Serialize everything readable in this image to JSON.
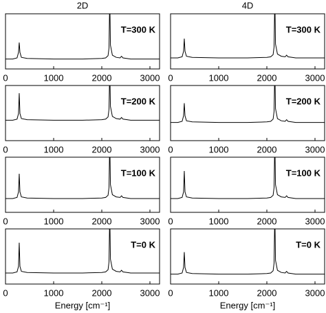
{
  "chart_data": [
    {
      "type": "line",
      "title": "2D",
      "annotation": "T=300 K",
      "color": "#000000",
      "x": [
        0,
        150,
        240,
        270,
        285,
        300,
        330,
        450,
        1000,
        1600,
        2000,
        2080,
        2130,
        2150,
        2165,
        2180,
        2220,
        2300,
        2380,
        2410,
        2440,
        2600,
        3000,
        3200
      ],
      "values": [
        0.18,
        0.18,
        0.2,
        0.3,
        0.48,
        0.3,
        0.21,
        0.19,
        0.18,
        0.18,
        0.19,
        0.2,
        0.24,
        0.38,
        1.3,
        0.43,
        0.25,
        0.21,
        0.2,
        0.23,
        0.2,
        0.18,
        0.18,
        0.18
      ],
      "xlim": [
        0,
        3200
      ],
      "ylim": [
        0,
        1
      ],
      "xticks": [
        0,
        1000,
        2000,
        3000
      ]
    },
    {
      "type": "line",
      "annotation": "T=200 K",
      "color": "#000000",
      "x": [
        0,
        150,
        240,
        270,
        285,
        300,
        330,
        450,
        1000,
        1600,
        2000,
        2080,
        2130,
        2150,
        2165,
        2180,
        2220,
        2300,
        2380,
        2410,
        2440,
        2600,
        3000,
        3200
      ],
      "values": [
        0.37,
        0.37,
        0.39,
        0.49,
        0.86,
        0.49,
        0.4,
        0.38,
        0.37,
        0.37,
        0.38,
        0.39,
        0.43,
        0.57,
        1.3,
        0.62,
        0.44,
        0.4,
        0.39,
        0.42,
        0.39,
        0.37,
        0.37,
        0.37
      ],
      "xlim": [
        0,
        3200
      ],
      "ylim": [
        0,
        1
      ],
      "xticks": [
        0,
        1000,
        2000,
        3000
      ]
    },
    {
      "type": "line",
      "annotation": "T=100 K",
      "color": "#000000",
      "x": [
        0,
        150,
        240,
        270,
        285,
        300,
        330,
        450,
        1000,
        1600,
        2000,
        2080,
        2130,
        2150,
        2165,
        2180,
        2220,
        2300,
        2380,
        2410,
        2440,
        2600,
        3000,
        3200
      ],
      "values": [
        0.25,
        0.25,
        0.27,
        0.37,
        0.7,
        0.37,
        0.28,
        0.26,
        0.25,
        0.25,
        0.26,
        0.27,
        0.31,
        0.45,
        1.3,
        0.5,
        0.32,
        0.28,
        0.27,
        0.3,
        0.27,
        0.25,
        0.25,
        0.25
      ],
      "xlim": [
        0,
        3200
      ],
      "ylim": [
        0,
        1
      ],
      "xticks": [
        0,
        1000,
        2000,
        3000
      ]
    },
    {
      "type": "line",
      "annotation": "T=0 K",
      "xlabel": "Energy [cm⁻¹]",
      "color": "#000000",
      "x": [
        0,
        150,
        240,
        270,
        285,
        300,
        330,
        450,
        1000,
        1600,
        2000,
        2080,
        2130,
        2150,
        2165,
        2180,
        2220,
        2300,
        2380,
        2410,
        2440,
        2600,
        3000,
        3200
      ],
      "values": [
        0.2,
        0.2,
        0.22,
        0.32,
        0.75,
        0.32,
        0.23,
        0.21,
        0.2,
        0.2,
        0.21,
        0.22,
        0.26,
        0.4,
        1.3,
        0.45,
        0.27,
        0.23,
        0.22,
        0.25,
        0.22,
        0.2,
        0.2,
        0.2
      ],
      "xlim": [
        0,
        3200
      ],
      "ylim": [
        0,
        1
      ],
      "xticks": [
        0,
        1000,
        2000,
        3000
      ]
    },
    {
      "type": "line",
      "title": "4D",
      "annotation": "T=300 K",
      "color": "#000000",
      "x": [
        0,
        150,
        240,
        270,
        285,
        300,
        330,
        450,
        1000,
        1600,
        2000,
        2080,
        2130,
        2150,
        2165,
        2180,
        2220,
        2300,
        2380,
        2410,
        2440,
        2600,
        3000,
        3200
      ],
      "values": [
        0.2,
        0.2,
        0.22,
        0.32,
        0.55,
        0.32,
        0.23,
        0.21,
        0.2,
        0.2,
        0.21,
        0.22,
        0.26,
        0.4,
        1.3,
        0.45,
        0.27,
        0.23,
        0.22,
        0.25,
        0.22,
        0.2,
        0.2,
        0.2
      ],
      "xlim": [
        0,
        3200
      ],
      "ylim": [
        0,
        1
      ],
      "xticks": [
        0,
        1000,
        2000,
        3000
      ]
    },
    {
      "type": "line",
      "annotation": "T=200 K",
      "color": "#000000",
      "x": [
        0,
        150,
        240,
        270,
        285,
        300,
        330,
        450,
        1000,
        1600,
        2000,
        2080,
        2130,
        2150,
        2165,
        2180,
        2220,
        2300,
        2380,
        2410,
        2440,
        2600,
        3000,
        3200
      ],
      "values": [
        0.33,
        0.33,
        0.35,
        0.45,
        0.68,
        0.45,
        0.36,
        0.34,
        0.33,
        0.33,
        0.34,
        0.35,
        0.39,
        0.53,
        1.3,
        0.58,
        0.4,
        0.36,
        0.35,
        0.38,
        0.35,
        0.33,
        0.33,
        0.33
      ],
      "xlim": [
        0,
        3200
      ],
      "ylim": [
        0,
        1
      ],
      "xticks": [
        0,
        1000,
        2000,
        3000
      ]
    },
    {
      "type": "line",
      "annotation": "T=100 K",
      "color": "#000000",
      "x": [
        0,
        150,
        240,
        270,
        285,
        300,
        330,
        450,
        1000,
        1600,
        2000,
        2080,
        2130,
        2150,
        2165,
        2180,
        2220,
        2300,
        2380,
        2410,
        2440,
        2600,
        3000,
        3200
      ],
      "values": [
        0.25,
        0.25,
        0.27,
        0.37,
        0.75,
        0.37,
        0.28,
        0.26,
        0.25,
        0.25,
        0.26,
        0.27,
        0.31,
        0.45,
        1.3,
        0.5,
        0.32,
        0.28,
        0.27,
        0.3,
        0.27,
        0.25,
        0.25,
        0.25
      ],
      "xlim": [
        0,
        3200
      ],
      "ylim": [
        0,
        1
      ],
      "xticks": [
        0,
        1000,
        2000,
        3000
      ]
    },
    {
      "type": "line",
      "annotation": "T=0 K",
      "xlabel": "Energy [cm⁻¹]",
      "color": "#000000",
      "x": [
        0,
        150,
        240,
        270,
        285,
        300,
        330,
        450,
        1000,
        1600,
        2000,
        2080,
        2130,
        2150,
        2165,
        2180,
        2220,
        2300,
        2380,
        2410,
        2440,
        2600,
        3000,
        3200
      ],
      "values": [
        0.18,
        0.18,
        0.2,
        0.3,
        0.58,
        0.3,
        0.21,
        0.19,
        0.18,
        0.18,
        0.19,
        0.2,
        0.24,
        0.38,
        1.3,
        0.43,
        0.25,
        0.21,
        0.2,
        0.23,
        0.2,
        0.18,
        0.18,
        0.18
      ],
      "xlim": [
        0,
        3200
      ],
      "ylim": [
        0,
        1
      ],
      "xticks": [
        0,
        1000,
        2000,
        3000
      ]
    }
  ]
}
